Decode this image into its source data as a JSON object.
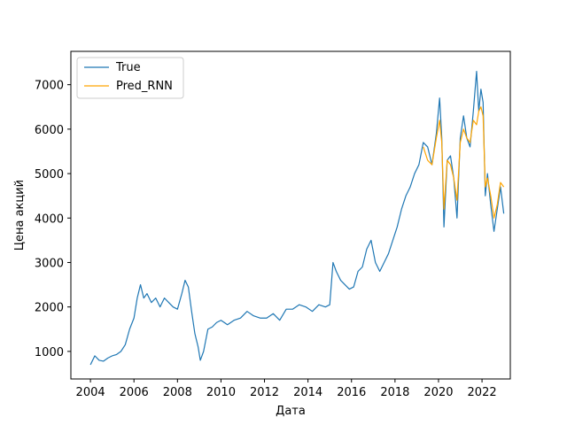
{
  "chart_data": {
    "type": "line",
    "title": "",
    "xlabel": "Дата",
    "ylabel": "Цена акций",
    "xlim": [
      2003.1,
      2023.3
    ],
    "ylim": [
      380,
      7750
    ],
    "x_ticks": [
      2004,
      2006,
      2008,
      2010,
      2012,
      2014,
      2016,
      2018,
      2020,
      2022
    ],
    "y_ticks": [
      1000,
      2000,
      3000,
      4000,
      5000,
      6000,
      7000
    ],
    "x_tick_labels": [
      "2004",
      "2006",
      "2008",
      "2010",
      "2012",
      "2014",
      "2016",
      "2018",
      "2020",
      "2022"
    ],
    "y_tick_labels": [
      "1000",
      "2000",
      "3000",
      "4000",
      "5000",
      "6000",
      "7000"
    ],
    "grid": false,
    "legend_position": "upper-left",
    "colors": {
      "true": "#1f77b4",
      "pred": "#ffa500",
      "axis": "#000000"
    },
    "series": [
      {
        "name": "True",
        "color": "#1f77b4",
        "x": [
          2004.0,
          2004.2,
          2004.4,
          2004.6,
          2004.8,
          2005.0,
          2005.2,
          2005.4,
          2005.6,
          2005.8,
          2006.0,
          2006.15,
          2006.3,
          2006.45,
          2006.6,
          2006.8,
          2007.0,
          2007.2,
          2007.4,
          2007.6,
          2007.8,
          2008.0,
          2008.2,
          2008.35,
          2008.5,
          2008.65,
          2008.8,
          2008.95,
          2009.05,
          2009.2,
          2009.4,
          2009.6,
          2009.8,
          2010.0,
          2010.3,
          2010.6,
          2010.9,
          2011.2,
          2011.5,
          2011.8,
          2012.1,
          2012.4,
          2012.7,
          2013.0,
          2013.3,
          2013.6,
          2013.9,
          2014.2,
          2014.5,
          2014.8,
          2015.0,
          2015.15,
          2015.3,
          2015.5,
          2015.7,
          2015.9,
          2016.1,
          2016.3,
          2016.5,
          2016.7,
          2016.9,
          2017.1,
          2017.3,
          2017.5,
          2017.7,
          2017.9,
          2018.1,
          2018.3,
          2018.5,
          2018.7,
          2018.9,
          2019.1,
          2019.3,
          2019.5,
          2019.7,
          2019.9,
          2020.05,
          2020.15,
          2020.25,
          2020.4,
          2020.55,
          2020.7,
          2020.85,
          2021.0,
          2021.15,
          2021.3,
          2021.45,
          2021.6,
          2021.75,
          2021.85,
          2021.95,
          2022.05,
          2022.15,
          2022.25,
          2022.4,
          2022.55,
          2022.7,
          2022.85,
          2023.0
        ],
        "y": [
          700,
          900,
          800,
          780,
          850,
          900,
          930,
          1000,
          1150,
          1500,
          1750,
          2200,
          2500,
          2200,
          2300,
          2100,
          2200,
          2000,
          2200,
          2100,
          2000,
          1950,
          2300,
          2600,
          2450,
          1900,
          1400,
          1100,
          800,
          1000,
          1500,
          1550,
          1650,
          1700,
          1600,
          1700,
          1750,
          1900,
          1800,
          1750,
          1750,
          1850,
          1700,
          1950,
          1950,
          2050,
          2000,
          1900,
          2050,
          2000,
          2050,
          3000,
          2800,
          2600,
          2500,
          2400,
          2450,
          2800,
          2900,
          3300,
          3500,
          3000,
          2800,
          3000,
          3200,
          3500,
          3800,
          4200,
          4500,
          4700,
          5000,
          5200,
          5700,
          5600,
          5200,
          5900,
          6700,
          5800,
          3800,
          5300,
          5400,
          4900,
          4000,
          5800,
          6300,
          5800,
          5600,
          6400,
          7300,
          6400,
          6900,
          6600,
          4500,
          5000,
          4300,
          3700,
          4200,
          4700,
          4100
        ]
      },
      {
        "name": "Pred_RNN",
        "color": "#ffa500",
        "x": [
          2019.3,
          2019.5,
          2019.7,
          2019.9,
          2020.05,
          2020.15,
          2020.25,
          2020.4,
          2020.55,
          2020.7,
          2020.85,
          2021.0,
          2021.15,
          2021.3,
          2021.45,
          2021.6,
          2021.75,
          2021.85,
          2021.95,
          2022.05,
          2022.15,
          2022.25,
          2022.4,
          2022.55,
          2022.7,
          2022.85,
          2023.0
        ],
        "y": [
          5600,
          5300,
          5200,
          5800,
          6200,
          5700,
          4200,
          5300,
          5200,
          4900,
          4400,
          5700,
          6000,
          5800,
          5700,
          6200,
          6100,
          6400,
          6500,
          6300,
          4700,
          4900,
          4500,
          4000,
          4300,
          4800,
          4700
        ]
      }
    ]
  },
  "legend": {
    "items": [
      "True",
      "Pred_RNN"
    ]
  }
}
